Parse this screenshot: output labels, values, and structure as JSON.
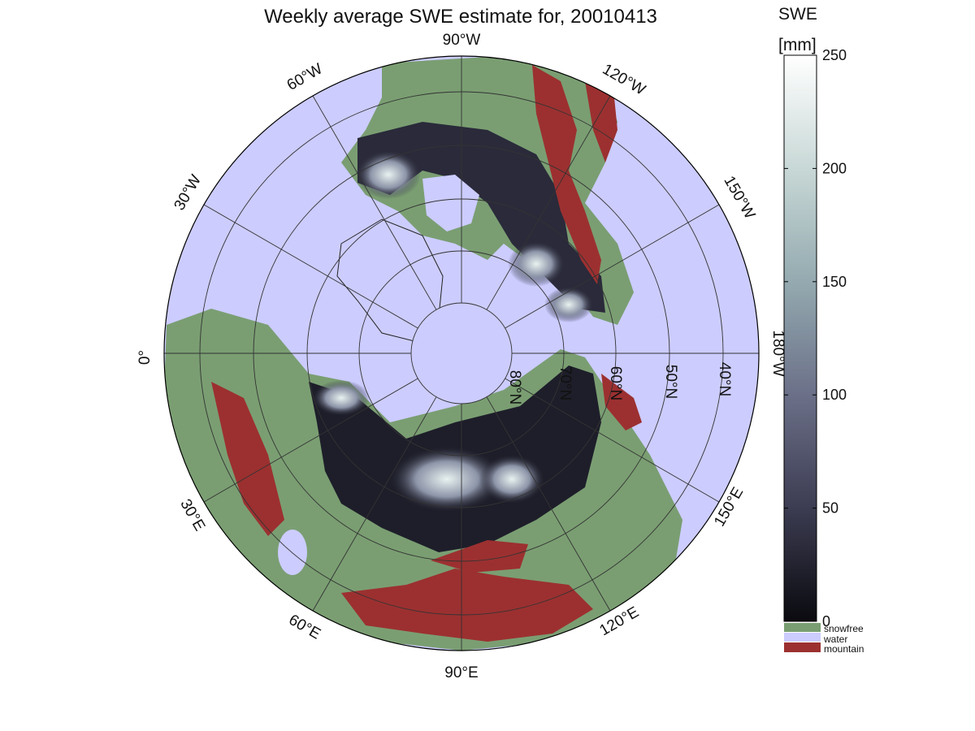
{
  "figure": {
    "title": "Weekly average SWE estimate for, 20010413"
  },
  "map": {
    "projection": "north-polar-stereographic",
    "colors": {
      "water": "#ccccff",
      "snowfree": "#7a9e72",
      "mountain": "#9c3030",
      "grid": "#333333"
    },
    "meridian_labels": [
      {
        "text": "90°W",
        "lon_deg": -90
      },
      {
        "text": "120°W",
        "lon_deg": -120
      },
      {
        "text": "150°W",
        "lon_deg": -150
      },
      {
        "text": "180°W",
        "lon_deg": 180
      },
      {
        "text": "150°E",
        "lon_deg": 150
      },
      {
        "text": "120°E",
        "lon_deg": 120
      },
      {
        "text": "90°E",
        "lon_deg": 90
      },
      {
        "text": "60°E",
        "lon_deg": 60
      },
      {
        "text": "30°E",
        "lon_deg": 30
      },
      {
        "text": "0°",
        "lon_deg": 0
      },
      {
        "text": "30°W",
        "lon_deg": -30
      },
      {
        "text": "60°W",
        "lon_deg": -60
      }
    ],
    "parallel_labels": [
      {
        "text": "80°N",
        "lat_deg": 80
      },
      {
        "text": "70°N",
        "lat_deg": 70
      },
      {
        "text": "60°N",
        "lat_deg": 60
      },
      {
        "text": "50°N",
        "lat_deg": 50
      },
      {
        "text": "40°N",
        "lat_deg": 40
      }
    ]
  },
  "colorbar": {
    "label_line1": "SWE",
    "label_line2": "[mm]",
    "range": [
      0,
      250
    ],
    "ticks": [
      "0",
      "50",
      "100",
      "150",
      "200",
      "250"
    ],
    "gradient": [
      "#0a0a0f",
      "#3c3c52",
      "#6b7088",
      "#94aab0",
      "#c8d8d6",
      "#ffffff"
    ]
  },
  "legend": [
    {
      "label": "snowfree",
      "color": "#7a9e72"
    },
    {
      "label": "water",
      "color": "#ccccff"
    },
    {
      "label": "mountain",
      "color": "#9c3030"
    }
  ]
}
